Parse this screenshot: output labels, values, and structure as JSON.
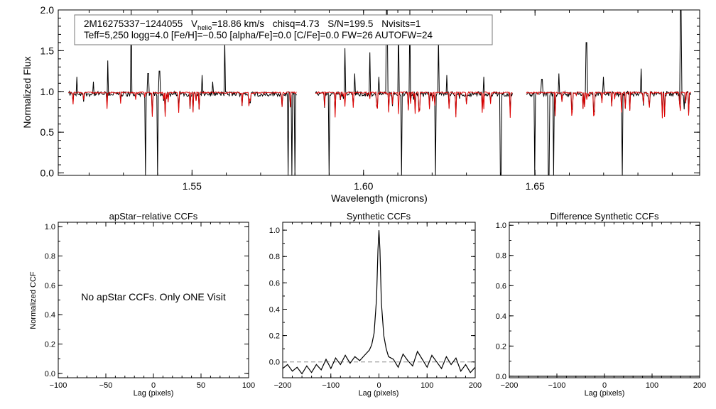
{
  "colors": {
    "observed": "#000000",
    "model": "#dd0000",
    "zero_line": "#888888"
  },
  "chart_data": [
    {
      "id": "spectrum",
      "type": "line",
      "title": "",
      "xlabel": "Wavelength (microns)",
      "ylabel": "Normalized Flux",
      "xlim": [
        1.511,
        1.698
      ],
      "ylim": [
        -0.03,
        2.0
      ],
      "xticks": [
        1.55,
        1.6,
        1.65
      ],
      "xtick_labels": [
        "1.55",
        "1.60",
        "1.65"
      ],
      "yticks": [
        0.0,
        0.5,
        1.0,
        1.5,
        2.0
      ],
      "ytick_labels": [
        "0.0",
        "0.5",
        "1.0",
        "1.5",
        "2.0"
      ],
      "annotation": {
        "star": "2M16275337−1244055",
        "vhelio_label": "V",
        "vhelio_sub": "helio",
        "vhelio_value": "=18.86 km/s",
        "chisq": "chisq=4.73",
        "snr": "S/N=199.5",
        "nvisits": "Nvisits=1",
        "line2": "Teff=5,250 logg=4.0 [Fe/H]=−0.50 [alpha/Fe]=0.0 [C/Fe]=0.0 FW=26 AUTOFW=24"
      },
      "segments": [
        [
          1.514,
          1.5805
        ],
        [
          1.586,
          1.6435
        ],
        [
          1.6475,
          1.6955
        ]
      ],
      "series": [
        {
          "name": "observed",
          "baseline": 0.97
        },
        {
          "name": "model",
          "baseline": 0.985
        }
      ],
      "emission_spikes": [
        [
          1.5165,
          1.18
        ],
        [
          1.5212,
          1.12
        ],
        [
          1.5255,
          1.38
        ],
        [
          1.5322,
          2.05
        ],
        [
          1.5372,
          1.22
        ],
        [
          1.5405,
          1.25
        ],
        [
          1.553,
          1.2
        ],
        [
          1.556,
          1.12
        ],
        [
          1.5595,
          1.63
        ],
        [
          1.5945,
          1.53
        ],
        [
          1.5975,
          1.22
        ],
        [
          1.6018,
          1.48
        ],
        [
          1.6045,
          1.18
        ],
        [
          1.6068,
          2.05
        ],
        [
          1.6102,
          1.85
        ],
        [
          1.6135,
          2.05
        ],
        [
          1.6218,
          1.65
        ],
        [
          1.6242,
          1.2
        ],
        [
          1.635,
          1.18
        ],
        [
          1.652,
          1.15
        ],
        [
          1.657,
          1.22
        ],
        [
          1.665,
          1.6
        ],
        [
          1.67,
          1.18
        ],
        [
          1.681,
          1.28
        ],
        [
          1.6925,
          2.0
        ]
      ],
      "absorption_lines": [
        [
          1.5365,
          -0.05
        ],
        [
          1.54,
          -0.05
        ],
        [
          1.578,
          -0.05
        ],
        [
          1.5792,
          -0.05
        ],
        [
          1.58,
          -0.05
        ],
        [
          1.59,
          -0.05
        ],
        [
          1.611,
          -0.05
        ],
        [
          1.621,
          -0.05
        ],
        [
          1.64,
          -0.05
        ],
        [
          1.65,
          -0.05
        ],
        [
          1.654,
          -0.05
        ],
        [
          1.6555,
          -0.05
        ],
        [
          1.6755,
          -0.05
        ],
        [
          1.6935,
          0.78
        ]
      ]
    },
    {
      "id": "apstar_ccf",
      "type": "line",
      "title": "apStar−relative CCFs",
      "xlabel": "Lag (pixels)",
      "ylabel": "Normalized CCF",
      "xlim": [
        -100,
        100
      ],
      "ylim": [
        -0.03,
        1.03
      ],
      "xticks": [
        -100,
        -50,
        0,
        50,
        100
      ],
      "xtick_labels": [
        "−100",
        "−50",
        "0",
        "50",
        "100"
      ],
      "yticks": [
        0.0,
        0.2,
        0.4,
        0.6,
        0.8,
        1.0
      ],
      "ytick_labels": [
        "0.0",
        "0.2",
        "0.4",
        "0.6",
        "0.8",
        "1.0"
      ],
      "message": "No apStar CCFs.  Only ONE Visit",
      "series": []
    },
    {
      "id": "synthetic_ccf",
      "type": "line",
      "title": "Synthetic CCFs",
      "xlabel": "Lag (pixels)",
      "ylabel": "",
      "xlim": [
        -200,
        200
      ],
      "ylim": [
        -0.12,
        1.06
      ],
      "xticks": [
        -200,
        -100,
        0,
        100,
        200
      ],
      "xtick_labels": [
        "−200",
        "−100",
        "0",
        "100",
        "200"
      ],
      "yticks": [
        0.0,
        0.2,
        0.4,
        0.6,
        0.8,
        1.0
      ],
      "ytick_labels": [
        "0.0",
        "0.2",
        "0.4",
        "0.6",
        "0.8",
        "1.0"
      ],
      "zero_line": 0.0,
      "series": [
        {
          "name": "ccf",
          "x": [
            -200,
            -190,
            -180,
            -170,
            -160,
            -150,
            -140,
            -130,
            -120,
            -110,
            -100,
            -90,
            -80,
            -70,
            -60,
            -50,
            -40,
            -30,
            -20,
            -15,
            -10,
            -5,
            -2,
            0,
            2,
            5,
            10,
            15,
            20,
            30,
            40,
            50,
            60,
            70,
            80,
            90,
            100,
            110,
            120,
            130,
            140,
            150,
            160,
            170,
            180,
            190,
            200
          ],
          "y": [
            -0.05,
            -0.02,
            -0.07,
            -0.04,
            -0.09,
            -0.03,
            -0.08,
            -0.02,
            -0.06,
            0.02,
            -0.05,
            0.03,
            -0.02,
            0.05,
            -0.01,
            0.04,
            0.01,
            0.05,
            0.09,
            0.13,
            0.22,
            0.48,
            0.85,
            1.0,
            0.85,
            0.45,
            0.2,
            0.1,
            0.04,
            0.02,
            -0.04,
            0.06,
            0.01,
            -0.03,
            0.08,
            0.02,
            -0.04,
            0.05,
            0.0,
            -0.05,
            0.04,
            -0.02,
            0.03,
            -0.07,
            -0.02,
            -0.08,
            -0.04
          ]
        }
      ]
    },
    {
      "id": "difference_ccf",
      "type": "line",
      "title": "Difference Synthetic CCFs",
      "xlabel": "Lag (pixels)",
      "ylabel": "",
      "xlim": [
        -200,
        200
      ],
      "ylim": [
        -0.01,
        1.02
      ],
      "xticks": [
        -200,
        -100,
        0,
        100,
        200
      ],
      "xtick_labels": [
        "−200",
        "−100",
        "0",
        "100",
        "200"
      ],
      "yticks": [
        0.0,
        0.2,
        0.4,
        0.6,
        0.8,
        1.0
      ],
      "ytick_labels": [
        "0.0",
        "0.2",
        "0.4",
        "0.6",
        "0.8",
        "1.0"
      ],
      "series": [
        {
          "name": "difference",
          "x": [
            -200,
            200
          ],
          "y": [
            0.0,
            0.0
          ]
        }
      ]
    }
  ]
}
